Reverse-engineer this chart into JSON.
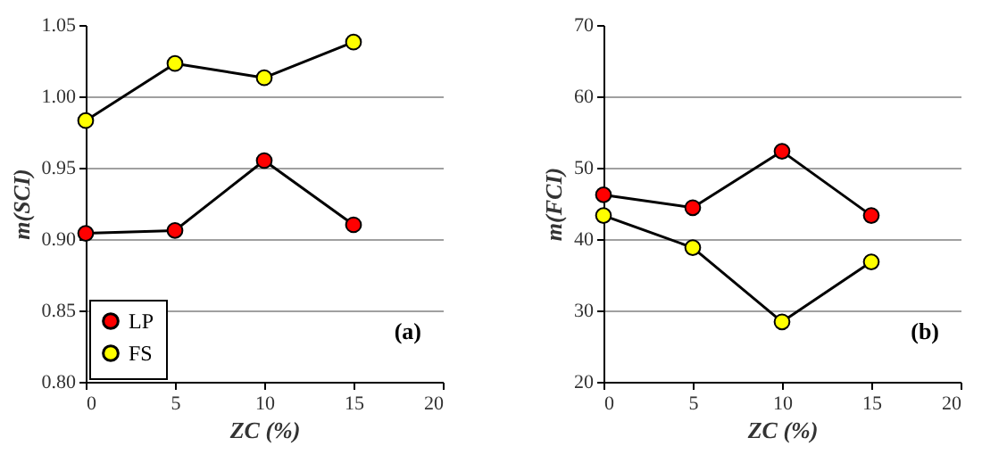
{
  "chart_data": [
    {
      "type": "line",
      "xlabel": "ZC (%)",
      "ylabel": "m(SCI)",
      "x": [
        0,
        5,
        10,
        15
      ],
      "xlim": [
        0,
        20
      ],
      "xticks": [
        0,
        5,
        10,
        15,
        20
      ],
      "ylim": [
        0.8,
        1.05
      ],
      "yticks": [
        {
          "value": 0.8,
          "label": "0.80"
        },
        {
          "value": 0.85,
          "label": "0.85"
        },
        {
          "value": 0.9,
          "label": "0.90"
        },
        {
          "value": 0.95,
          "label": "0.95"
        },
        {
          "value": 1.0,
          "label": "1.00"
        },
        {
          "value": 1.05,
          "label": "1.05"
        }
      ],
      "grid": "y",
      "marker": "circle",
      "legend": "bottom left",
      "annotations": [
        "(a)"
      ],
      "series": [
        {
          "name": "LP",
          "color": "#ff0000",
          "values": [
            0.904,
            0.906,
            0.955,
            0.91
          ]
        },
        {
          "name": "FS",
          "color": "#ffff00",
          "values": [
            0.983,
            1.023,
            1.013,
            1.038
          ]
        }
      ]
    },
    {
      "type": "line",
      "xlabel": "ZC (%)",
      "ylabel": "m(FCI)",
      "x": [
        0,
        5,
        10,
        15
      ],
      "xlim": [
        0,
        20
      ],
      "xticks": [
        0,
        5,
        10,
        15,
        20
      ],
      "ylim": [
        20,
        70
      ],
      "yticks": [
        20,
        30,
        40,
        50,
        60,
        70
      ],
      "grid": "y",
      "marker": "circle",
      "legend": false,
      "annotations": [
        "(b)"
      ],
      "series": [
        {
          "color": "#ff0000",
          "values": [
            46.2,
            44.4,
            52.3,
            43.3
          ]
        },
        {
          "color": "#ffff00",
          "values": [
            43.3,
            38.8,
            28.4,
            36.8
          ]
        }
      ]
    }
  ]
}
